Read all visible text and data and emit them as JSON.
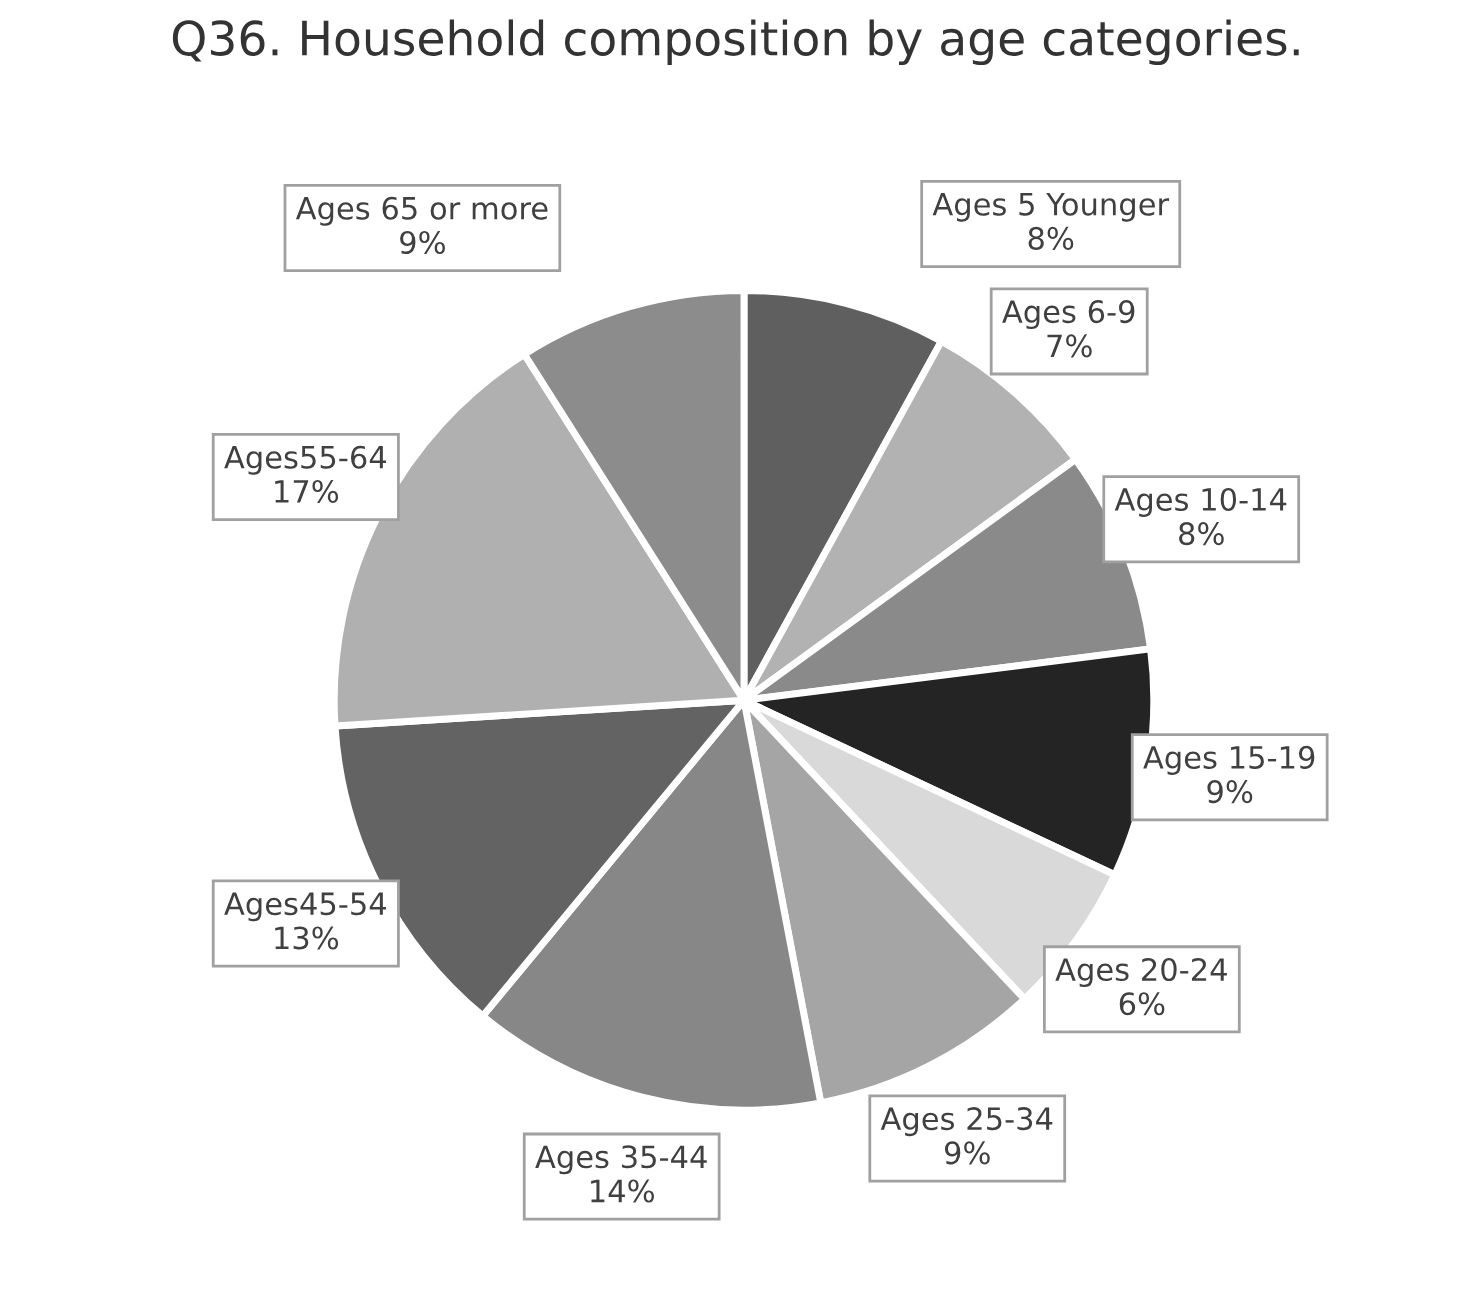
{
  "chart_data": {
    "type": "pie",
    "title": "Q36. Household composition by age categories.",
    "categories": [
      "Ages 5 Younger",
      "Ages 6-9",
      "Ages 10-14",
      "Ages 15-19",
      "Ages 20-24",
      "Ages 25-34",
      "Ages 35-44",
      "Ages45-54",
      "Ages55-64",
      "Ages 65 or more"
    ],
    "values": [
      8,
      7,
      8,
      9,
      6,
      9,
      14,
      13,
      17,
      9
    ],
    "value_labels": [
      "8%",
      "7%",
      "8%",
      "9%",
      "6%",
      "9%",
      "14%",
      "13%",
      "17%",
      "9%"
    ],
    "colors": [
      "#5f5f5f",
      "#b2b2b2",
      "#8a8a8a",
      "#242424",
      "#d9d9d9",
      "#a5a5a5",
      "#878787",
      "#636363",
      "#b0b0b0",
      "#8c8c8c"
    ]
  }
}
